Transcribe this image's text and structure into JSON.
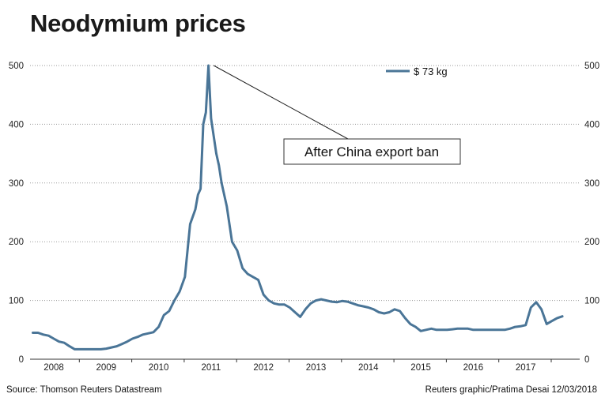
{
  "chart_data": {
    "type": "line",
    "title": "Neodymium prices",
    "ylim": [
      0,
      500
    ],
    "yticks": [
      0,
      100,
      200,
      300,
      400,
      500
    ],
    "xlim": [
      2007.6,
      2017.8
    ],
    "xticks": [
      2008,
      2009,
      2010,
      2011,
      2012,
      2013,
      2014,
      2015,
      2016,
      2017
    ],
    "grid": "horizontal dotted",
    "legend_position": "top-right",
    "series": [
      {
        "name": "$ 73 kg",
        "color": "#4a7597",
        "x": [
          2007.6,
          2007.7,
          2007.8,
          2007.9,
          2008.0,
          2008.1,
          2008.2,
          2008.3,
          2008.4,
          2008.5,
          2008.6,
          2008.7,
          2008.8,
          2008.9,
          2009.0,
          2009.1,
          2009.2,
          2009.3,
          2009.4,
          2009.5,
          2009.6,
          2009.7,
          2009.8,
          2009.9,
          2010.0,
          2010.1,
          2010.2,
          2010.3,
          2010.4,
          2010.5,
          2010.6,
          2010.7,
          2010.75,
          2010.8,
          2010.85,
          2010.9,
          2010.95,
          2011.0,
          2011.05,
          2011.1,
          2011.15,
          2011.2,
          2011.3,
          2011.4,
          2011.5,
          2011.6,
          2011.7,
          2011.8,
          2011.9,
          2012.0,
          2012.1,
          2012.2,
          2012.3,
          2012.4,
          2012.5,
          2012.6,
          2012.7,
          2012.8,
          2012.9,
          2013.0,
          2013.1,
          2013.2,
          2013.3,
          2013.4,
          2013.5,
          2013.6,
          2013.7,
          2013.8,
          2013.9,
          2014.0,
          2014.1,
          2014.2,
          2014.3,
          2014.4,
          2014.5,
          2014.6,
          2014.7,
          2014.8,
          2014.9,
          2015.0,
          2015.1,
          2015.2,
          2015.3,
          2015.4,
          2015.5,
          2015.6,
          2015.7,
          2015.8,
          2015.9,
          2016.0,
          2016.1,
          2016.2,
          2016.3,
          2016.4,
          2016.5,
          2016.6,
          2016.7,
          2016.8,
          2016.9,
          2017.0,
          2017.1,
          2017.2,
          2017.3,
          2017.4,
          2017.5,
          2017.6,
          2017.7
        ],
        "values": [
          45,
          45,
          42,
          40,
          35,
          30,
          28,
          22,
          17,
          17,
          17,
          17,
          17,
          17,
          18,
          20,
          22,
          26,
          30,
          35,
          38,
          42,
          44,
          46,
          55,
          75,
          82,
          100,
          115,
          140,
          230,
          255,
          280,
          290,
          400,
          420,
          500,
          410,
          380,
          350,
          330,
          300,
          260,
          200,
          185,
          155,
          145,
          140,
          135,
          110,
          100,
          95,
          93,
          93,
          88,
          80,
          72,
          85,
          95,
          100,
          102,
          100,
          98,
          97,
          99,
          98,
          95,
          92,
          90,
          88,
          85,
          80,
          78,
          80,
          85,
          82,
          70,
          60,
          55,
          48,
          50,
          52,
          50,
          50,
          50,
          51,
          52,
          52,
          52,
          50,
          50,
          50,
          50,
          50,
          50,
          50,
          52,
          55,
          56,
          58,
          88,
          97,
          85,
          60,
          65,
          70,
          73
        ]
      }
    ],
    "annotation": {
      "text": "After China export ban",
      "target_x": 2011.05,
      "target_y": 500
    },
    "source": "Source: Thomson Reuters Datastream",
    "credit": "Reuters graphic/Pratima Desai 12/03/2018"
  }
}
